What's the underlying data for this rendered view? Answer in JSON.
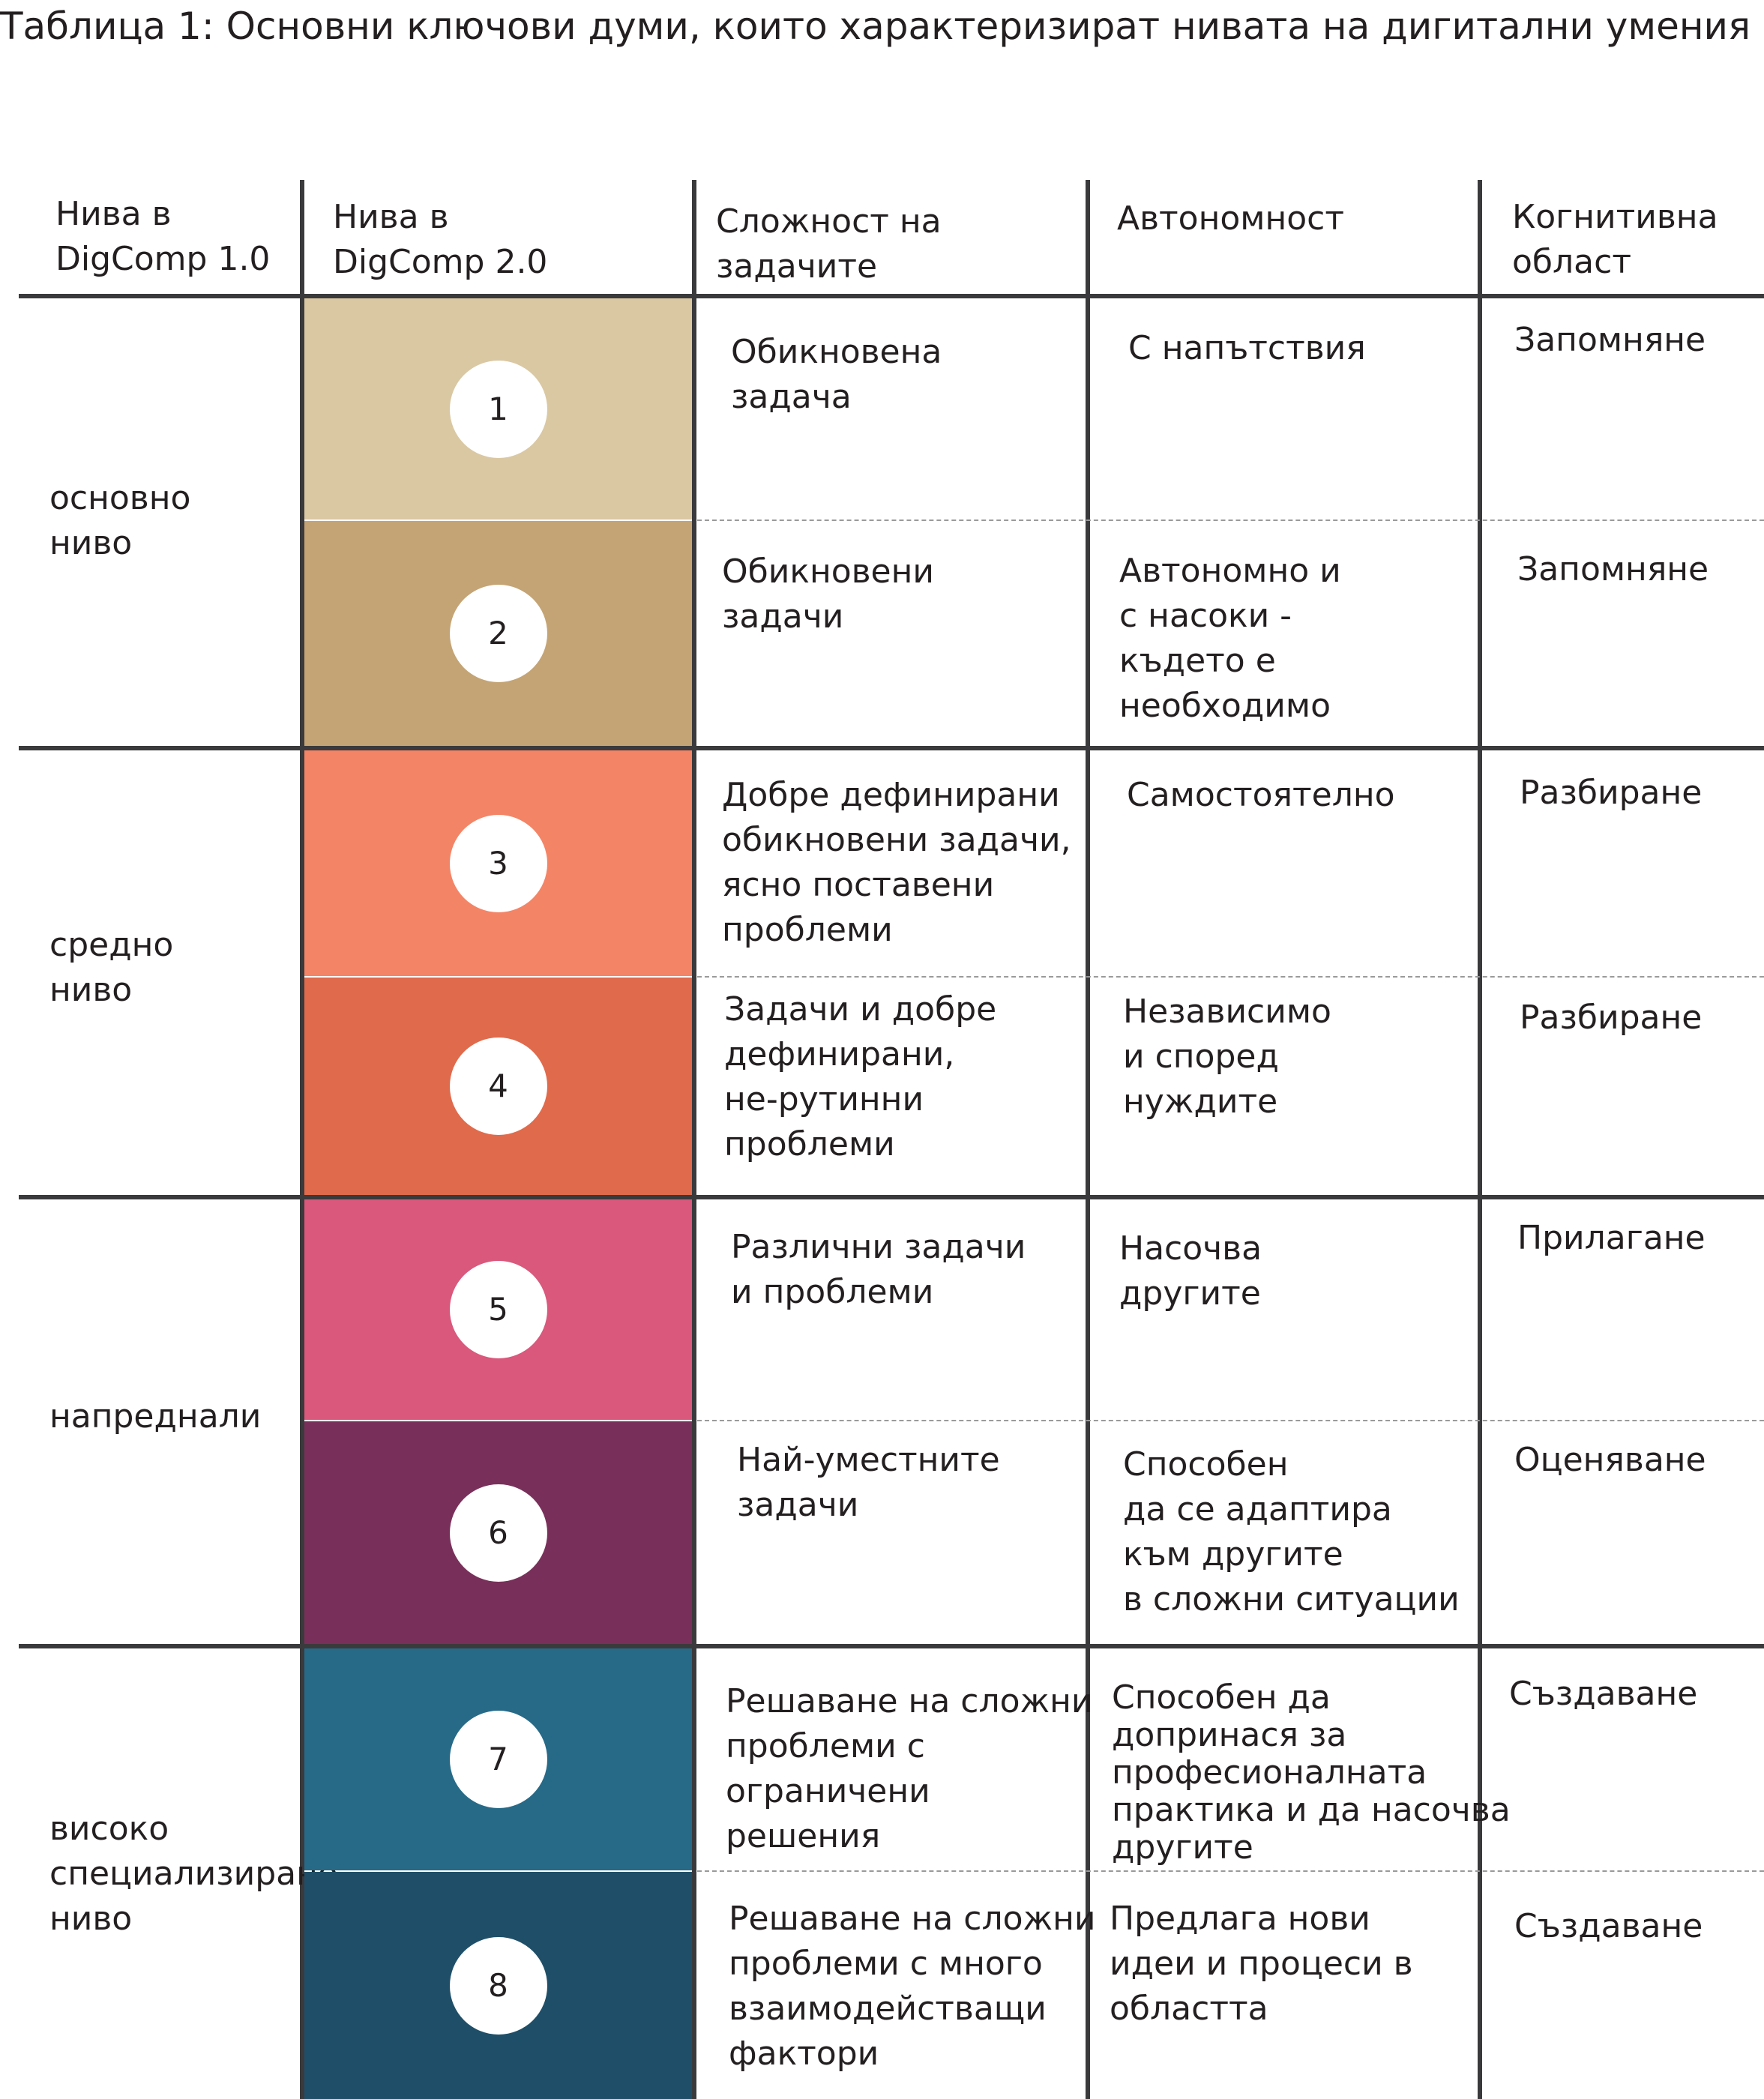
{
  "caption": "Таблица 1: Основни ключови думи, които характеризират нивата на дигитални умения",
  "headers": {
    "digcomp10": "Нива в\nDigComp 1.0",
    "digcomp20": "Нива в\nDigComp 2.0",
    "complexity": "Сложност на\nзадачите",
    "autonomy": "Автономност",
    "cognitive": "Когнитивна\nобласт"
  },
  "groups": [
    {
      "label": "основно\nниво"
    },
    {
      "label": "средно\nниво"
    },
    {
      "label": "напреднали"
    },
    {
      "label": "високо\nспециализирано\nниво"
    }
  ],
  "levels": [
    {
      "number": "1",
      "color": "#dac8a3",
      "complexity": "Обикновена\nзадача",
      "autonomy": "С напътствия",
      "cognitive": "Запомняне"
    },
    {
      "number": "2",
      "color": "#c4a475",
      "complexity": "Обикновени\nзадачи",
      "autonomy": "Автономно и\nс насоки -\nкъдето е\nнеобходимо",
      "cognitive": "Запомняне"
    },
    {
      "number": "3",
      "color": "#f48466",
      "complexity": "Добре дефинирани\nобикновени задачи,\nясно поставени\nпроблеми",
      "autonomy": "Самостоятелно",
      "cognitive": "Разбиране"
    },
    {
      "number": "4",
      "color": "#e06a4c",
      "complexity": "Задачи и добре\nдефинирани,\nне-рутинни\nпроблеми",
      "autonomy": "Независимо\nи според\nнуждите",
      "cognitive": "Разбиране"
    },
    {
      "number": "5",
      "color": "#d9587c",
      "complexity": "Различни задачи\nи проблеми",
      "autonomy": "Насочва\nдругите",
      "cognitive": "Прилагане"
    },
    {
      "number": "6",
      "color": "#78305a",
      "complexity": "Най-уместните\nзадачи",
      "autonomy": "Способен\nда се адаптира\nкъм другите\nв сложни ситуации",
      "cognitive": "Оценяване"
    },
    {
      "number": "7",
      "color": "#266a88",
      "complexity": "Решаване на сложни\nпроблеми с\nограничени\nрешения",
      "autonomy": "Способен да\nдопринася за\nпрофесионалната\nпрактика и да насочва\nдругите",
      "cognitive": "Създаване"
    },
    {
      "number": "8",
      "color": "#1f4f68",
      "complexity": "Решаване на сложни\nпроблеми с много\nвзаимодействащи\nфактори",
      "autonomy": "Предлага нови\nидеи и процеси в\nобластта",
      "cognitive": "Създаване"
    }
  ]
}
